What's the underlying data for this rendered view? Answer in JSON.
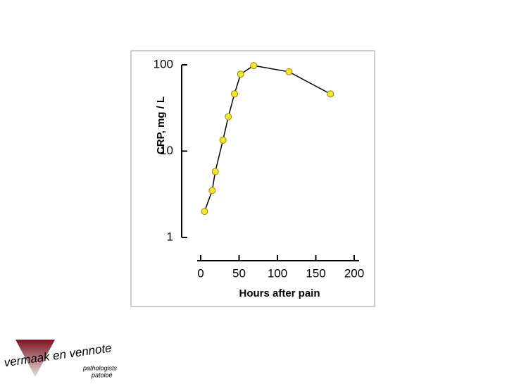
{
  "chart_data": {
    "type": "line",
    "x_label": "Hours after pain",
    "y_label": "CRP, mg / L",
    "x": [
      5,
      15,
      19,
      29,
      36,
      44,
      52,
      69,
      115,
      169
    ],
    "values": [
      2.0,
      3.5,
      5.8,
      13.4,
      25,
      46,
      78,
      98,
      83,
      46
    ],
    "color": "#000000",
    "marker_color": "#f2e52a",
    "xlim": [
      0,
      200
    ],
    "xticks": [
      0,
      50,
      100,
      150,
      200
    ],
    "ylim": [
      1,
      100
    ],
    "yticks": [
      1,
      10,
      100
    ],
    "log_y": true
  },
  "logo": {
    "name": "vermaak en vennote",
    "line1": "pathologists",
    "line2": "patoloë"
  }
}
